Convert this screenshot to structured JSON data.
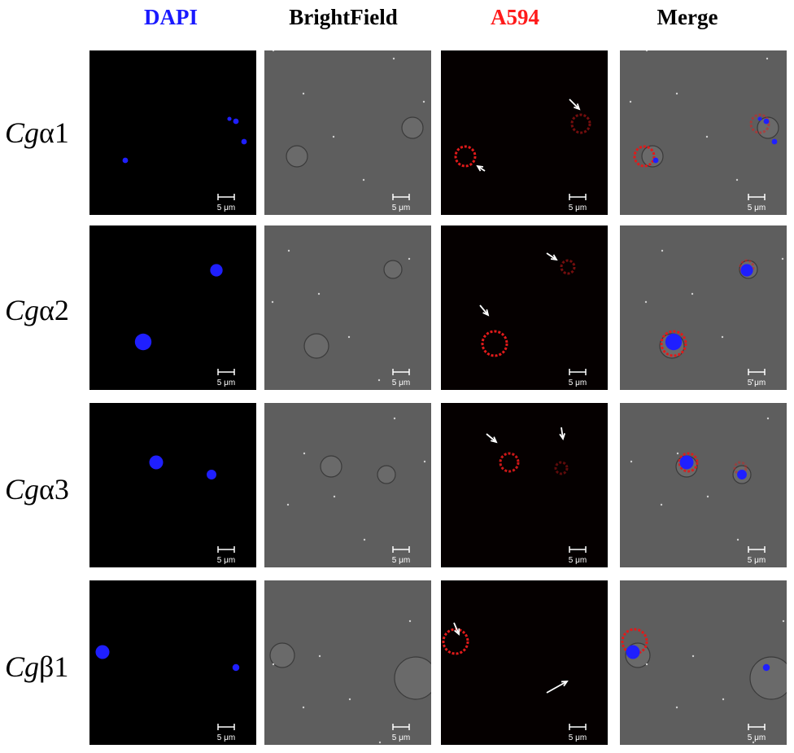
{
  "columns": [
    {
      "label": "DAPI",
      "color": "#1a1aff"
    },
    {
      "label": "BrightField",
      "color": "#000000"
    },
    {
      "label": "A594",
      "color": "#ff1a1a"
    },
    {
      "label": "Merge",
      "color": "#000000"
    }
  ],
  "rows": [
    {
      "prefix": "Cg",
      "suffix": "α1"
    },
    {
      "prefix": "Cg",
      "suffix": "α2"
    },
    {
      "prefix": "Cg",
      "suffix": "α3"
    },
    {
      "prefix": "Cg",
      "suffix": "β1"
    }
  ],
  "scale_bar_label": "5 μm",
  "colors": {
    "dapi_bg": "#000000",
    "dapi_nucleus": "#1f1fff",
    "brightfield_bg": "#5e5e5e",
    "a594_bg": "#050000",
    "a594_signal": "#e11a1a",
    "arrow": "#ffffff"
  }
}
